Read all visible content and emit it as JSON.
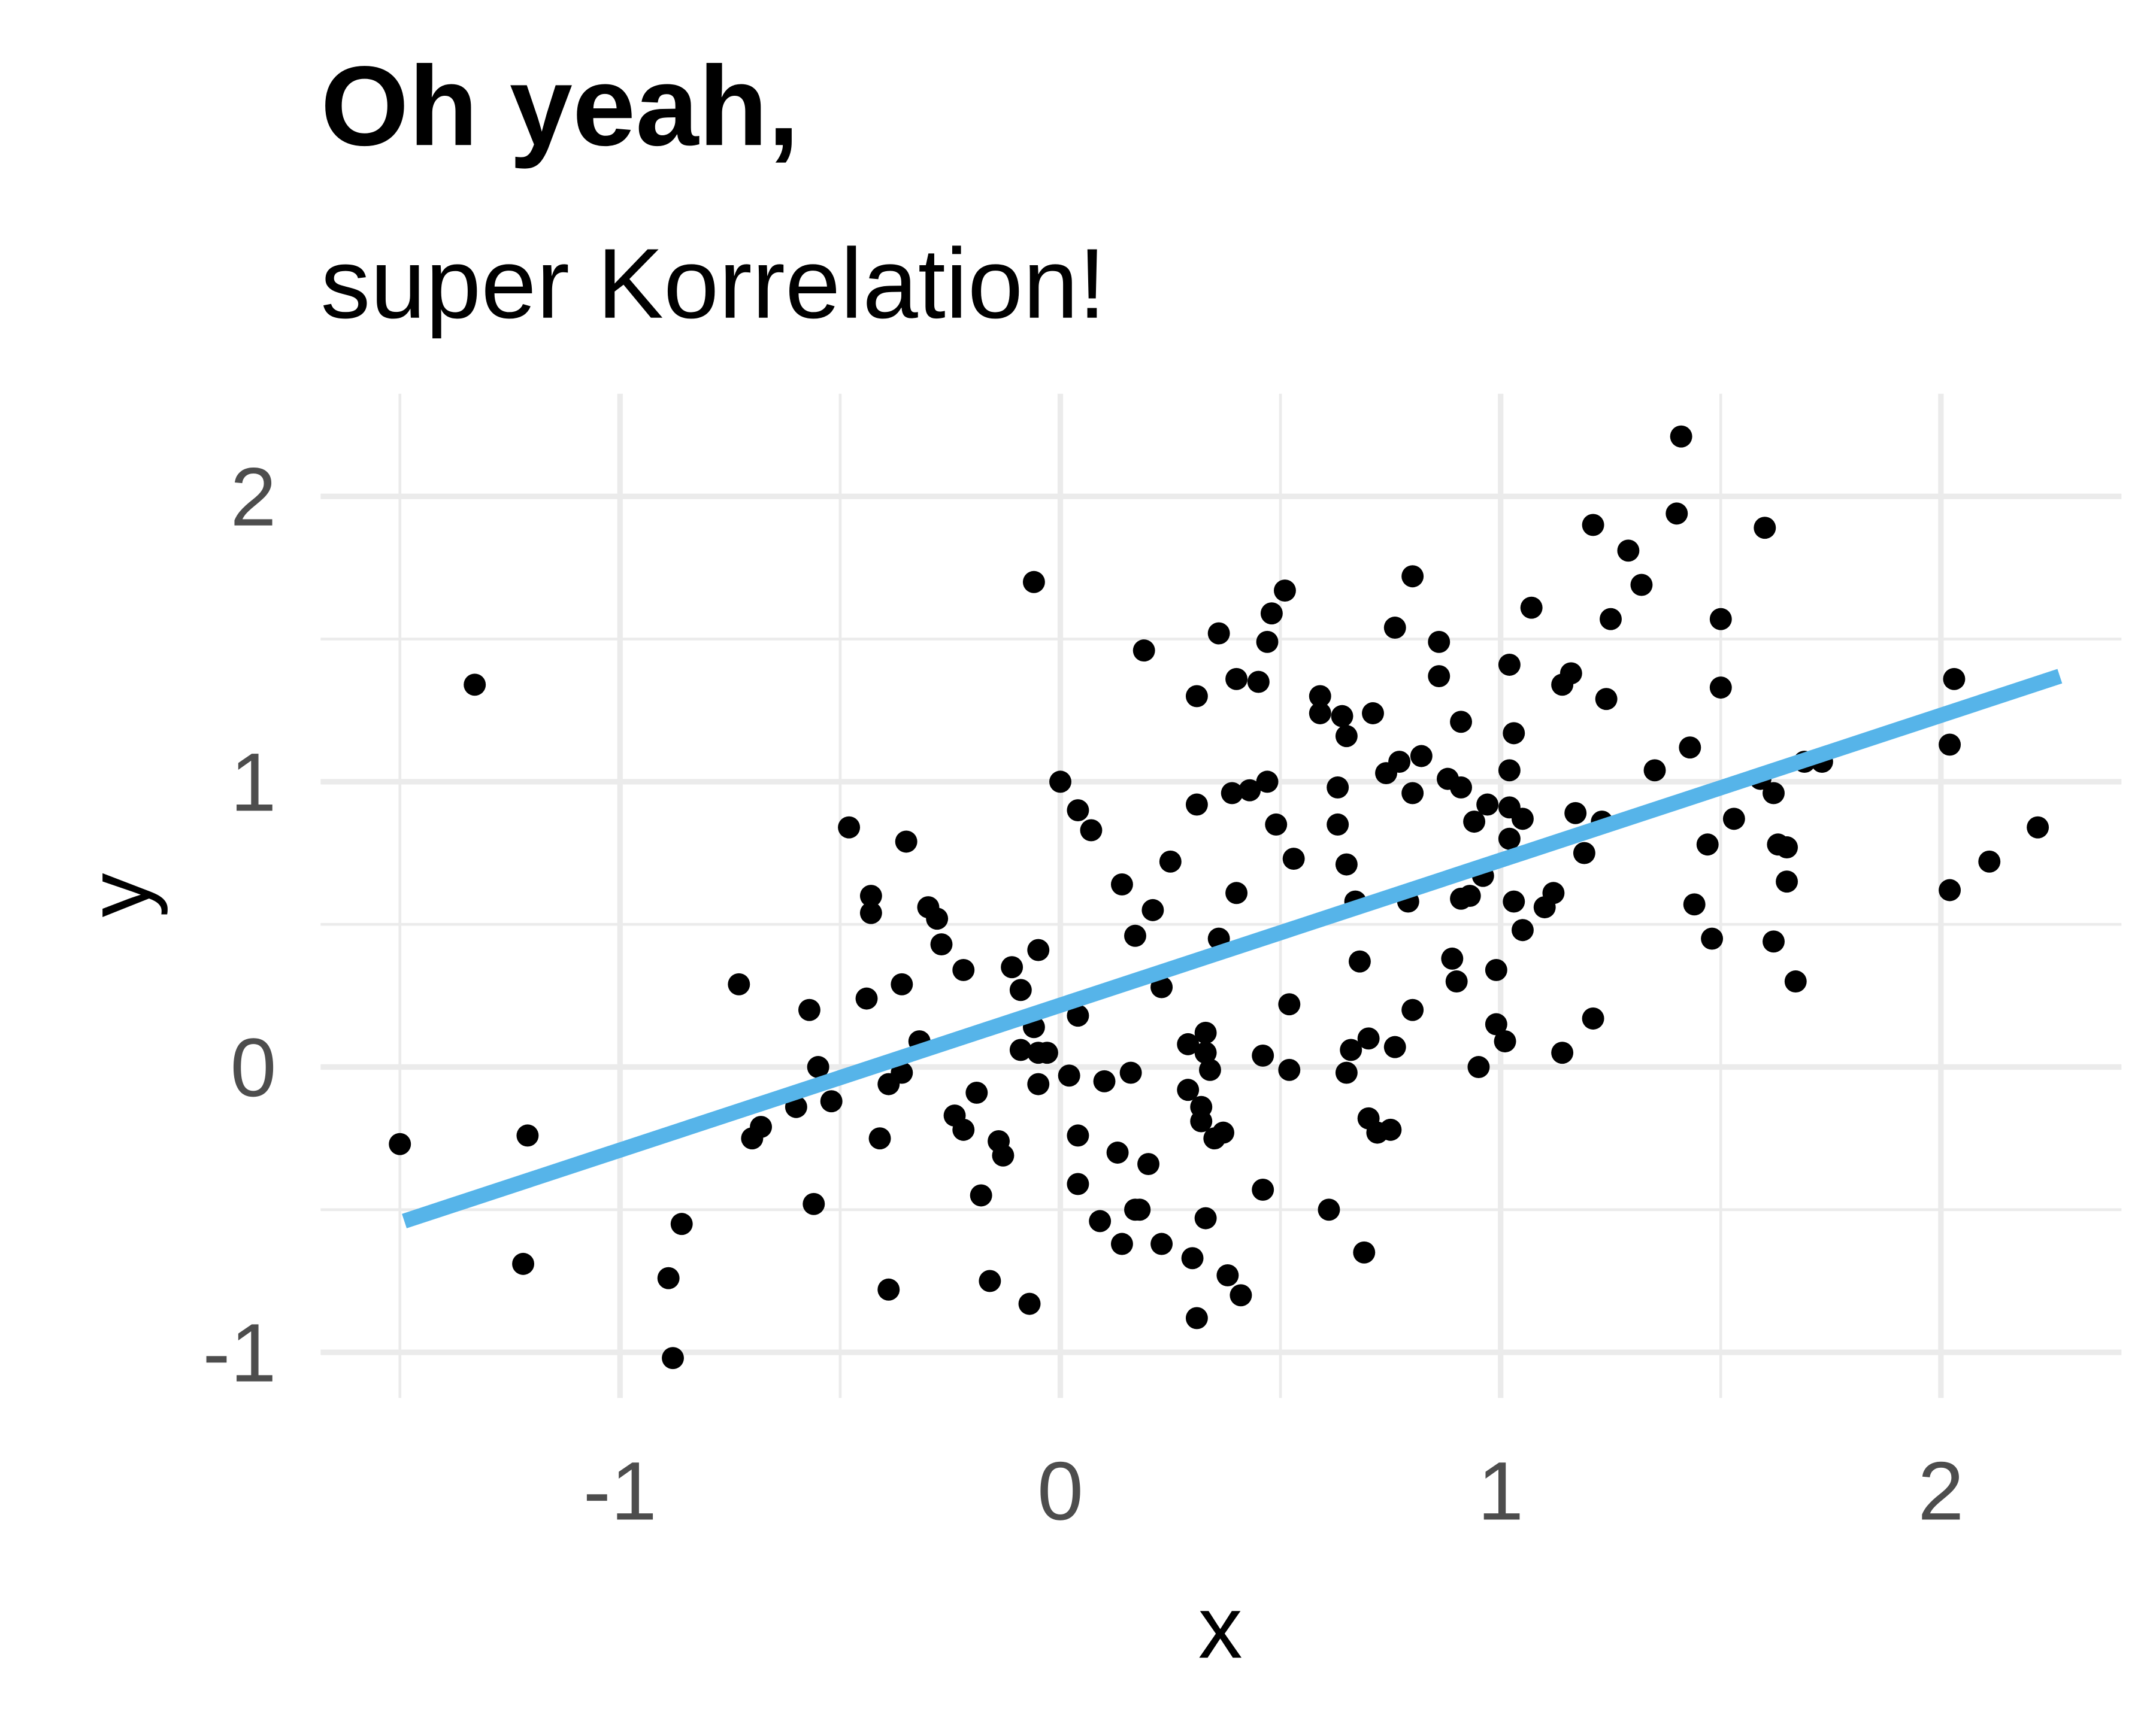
{
  "chart_data": {
    "type": "scatter",
    "title": "Oh yeah,",
    "subtitle": "super Korrelation!",
    "x_label": "x",
    "y_label": "y",
    "xlim": [
      -1.68,
      2.41
    ],
    "ylim": [
      -1.16,
      2.36
    ],
    "xticks": [
      -1,
      0,
      1,
      2
    ],
    "yticks": [
      -1,
      0,
      1,
      2
    ],
    "grid": true,
    "color": "#000000",
    "x": [
      -1.5,
      -1.33,
      -1.21,
      -1.22,
      -0.89,
      -0.88,
      -0.86,
      -0.73,
      -0.7,
      -0.68,
      -0.6,
      -0.57,
      -0.56,
      -0.55,
      -0.52,
      -0.48,
      -0.44,
      -0.43,
      -0.43,
      -0.41,
      -0.39,
      -0.39,
      -0.36,
      -0.36,
      -0.35,
      -0.32,
      -0.3,
      -0.28,
      -0.27,
      -0.24,
      -0.22,
      -0.22,
      -0.19,
      -0.18,
      -0.16,
      -0.14,
      -0.13,
      -0.11,
      -0.09,
      -0.09,
      -0.07,
      -0.06,
      -0.06,
      -0.05,
      -0.05,
      -0.05,
      -0.03,
      0.0,
      0.02,
      0.04,
      0.04,
      0.04,
      0.04,
      0.07,
      0.09,
      0.1,
      0.13,
      0.14,
      0.14,
      0.16,
      0.17,
      0.17,
      0.18,
      0.19,
      0.2,
      0.21,
      0.23,
      0.23,
      0.25,
      0.29,
      0.29,
      0.3,
      0.31,
      0.31,
      0.31,
      0.32,
      0.32,
      0.33,
      0.33,
      0.33,
      0.34,
      0.35,
      0.36,
      0.36,
      0.37,
      0.38,
      0.4,
      0.39,
      0.4,
      0.41,
      0.43,
      0.45,
      0.46,
      0.46,
      0.47,
      0.47,
      0.48,
      0.49,
      0.51,
      0.52,
      0.52,
      0.53,
      0.59,
      0.59,
      0.61,
      0.63,
      0.63,
      0.64,
      0.65,
      0.65,
      0.65,
      0.66,
      0.67,
      0.68,
      0.69,
      0.7,
      0.7,
      0.71,
      0.72,
      0.74,
      0.75,
      0.76,
      0.76,
      0.77,
      0.79,
      0.8,
      0.8,
      0.8,
      0.82,
      0.86,
      0.86,
      0.88,
      0.89,
      0.9,
      0.91,
      0.91,
      0.91,
      0.93,
      0.94,
      0.95,
      0.96,
      0.97,
      0.99,
      0.99,
      1.01,
      1.02,
      1.02,
      1.02,
      1.03,
      1.02,
      1.03,
      1.05,
      1.05,
      1.07,
      1.1,
      1.12,
      1.14,
      1.14,
      1.16,
      1.17,
      1.19,
      1.21,
      1.21,
      1.23,
      1.24,
      1.25,
      1.29,
      1.32,
      1.35,
      1.41,
      1.4,
      1.43,
      1.44,
      1.47,
      1.48,
      1.5,
      1.5,
      1.53,
      1.6,
      1.59,
      1.62,
      1.62,
      1.63,
      1.65,
      1.65,
      1.67,
      1.69,
      1.73,
      2.02,
      2.02,
      2.03,
      2.11,
      2.22
    ],
    "values": [
      -0.27,
      1.34,
      -0.24,
      -0.69,
      -0.74,
      -1.02,
      -0.55,
      0.29,
      -0.25,
      -0.21,
      -0.14,
      0.2,
      -0.48,
      0.0,
      -0.12,
      0.84,
      0.24,
      0.6,
      0.54,
      -0.25,
      -0.78,
      -0.06,
      -0.02,
      0.29,
      0.79,
      0.09,
      0.56,
      0.52,
      0.43,
      -0.17,
      0.34,
      -0.22,
      -0.09,
      -0.45,
      -0.75,
      -0.26,
      -0.31,
      0.35,
      0.27,
      0.06,
      -0.83,
      0.14,
      1.7,
      -0.06,
      0.41,
      0.05,
      0.05,
      1.0,
      -0.03,
      0.9,
      -0.24,
      0.18,
      -0.41,
      0.83,
      -0.54,
      -0.05,
      -0.3,
      -0.62,
      0.64,
      -0.02,
      0.46,
      -0.5,
      -0.5,
      1.46,
      -0.34,
      0.55,
      -0.62,
      0.28,
      0.72,
      -0.08,
      0.08,
      -0.67,
      1.3,
      0.92,
      -0.88,
      -0.19,
      -0.14,
      -0.53,
      0.12,
      0.05,
      -0.01,
      -0.25,
      0.45,
      1.52,
      -0.23,
      -0.73,
      0.61,
      0.96,
      1.36,
      -0.8,
      0.97,
      1.35,
      0.04,
      -0.43,
      1.0,
      1.49,
      1.59,
      0.85,
      1.67,
      -0.01,
      0.22,
      0.73,
      1.3,
      1.24,
      -0.5,
      0.85,
      0.98,
      1.23,
      0.71,
      -0.02,
      1.16,
      0.06,
      0.58,
      0.37,
      -0.65,
      0.1,
      -0.18,
      1.24,
      -0.23,
      1.03,
      -0.22,
      0.07,
      1.54,
      1.07,
      0.58,
      1.72,
      0.96,
      0.2,
      1.09,
      1.37,
      1.49,
      1.01,
      0.38,
      0.3,
      0.98,
      1.21,
      0.59,
      0.6,
      0.86,
      0.0,
      0.67,
      0.92,
      0.34,
      0.15,
      0.09,
      0.8,
      1.04,
      0.91,
      0.58,
      1.41,
      1.17,
      0.87,
      0.48,
      1.61,
      0.56,
      0.61,
      1.34,
      0.05,
      1.38,
      0.89,
      0.75,
      1.9,
      0.17,
      0.86,
      1.29,
      1.57,
      1.81,
      1.69,
      1.04,
      2.21,
      1.94,
      1.12,
      0.57,
      0.78,
      0.45,
      1.33,
      1.57,
      0.87,
      1.89,
      1.01,
      0.96,
      0.44,
      0.78,
      0.77,
      0.65,
      0.3,
      1.07,
      1.07,
      0.62,
      1.13,
      1.36,
      0.72,
      0.84
    ],
    "trend": {
      "color": "#56B4E9",
      "x": [
        -1.49,
        2.27
      ],
      "values": [
        -0.54,
        1.37
      ]
    }
  }
}
